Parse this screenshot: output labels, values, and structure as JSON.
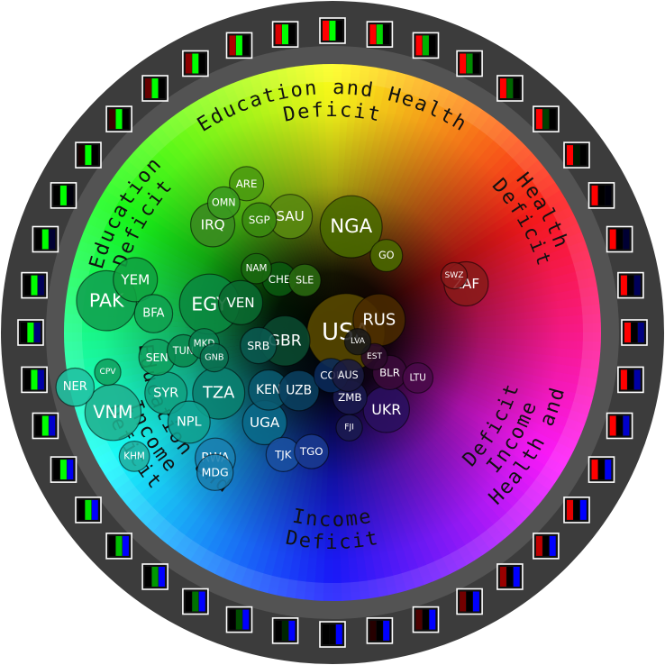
{
  "chart_data": {
    "type": "scatter",
    "projection": "radial color wheel (angle = deficit mix, radius = deficit magnitude)",
    "region_labels": [
      {
        "id": "edu-health",
        "line1": "Education and Health",
        "line2": "Deficit"
      },
      {
        "id": "health",
        "line1": "Health",
        "line2": "Deficit"
      },
      {
        "id": "health-income",
        "line1": "Health and",
        "line2": "Income",
        "line3": "Deficit"
      },
      {
        "id": "income",
        "line1": "Income",
        "line2": "Deficit"
      },
      {
        "id": "edu-income",
        "line1": "Education and",
        "line2": "Income",
        "line3": "Deficit"
      },
      {
        "id": "education",
        "line1": "Education",
        "line2": "Deficit"
      }
    ],
    "countries": [
      {
        "code": "USA",
        "ang": 90,
        "r": 0.05,
        "size": 3.2,
        "color": "#5a4a00"
      },
      {
        "code": "RUS",
        "ang": 75,
        "r": 0.18,
        "size": 1.9,
        "color": "#4a2a00"
      },
      {
        "code": "ZAF",
        "ang": 70,
        "r": 0.53,
        "size": 1.5,
        "color": "#8a1a1a"
      },
      {
        "code": "NGA",
        "ang": 10,
        "r": 0.4,
        "size": 2.4,
        "color": "#4a6a00"
      },
      {
        "code": "SAU",
        "ang": -20,
        "r": 0.46,
        "size": 1.5,
        "color": "#5a8a10"
      },
      {
        "code": "IRQ",
        "ang": -48,
        "r": 0.6,
        "size": 1.5,
        "color": "#3a8a20"
      },
      {
        "code": "ARE",
        "ang": -30,
        "r": 0.64,
        "size": 1.0,
        "color": "#4a9a10"
      },
      {
        "code": "GO",
        "ang": 35,
        "r": 0.35,
        "size": 0.9,
        "color": "#4a6a00"
      },
      {
        "code": "SWZ",
        "ang": 65,
        "r": 0.5,
        "size": 0.6,
        "color": "#8a1a1a"
      },
      {
        "code": "SGP",
        "ang": -33,
        "r": 0.5,
        "size": 1.0,
        "color": "#3a8a10"
      },
      {
        "code": "OMN",
        "ang": -40,
        "r": 0.63,
        "size": 0.9,
        "color": "#3a9a20"
      },
      {
        "code": "SLE",
        "ang": -28,
        "r": 0.22,
        "size": 0.9,
        "color": "#2a6a10"
      },
      {
        "code": "CHE",
        "ang": -45,
        "r": 0.28,
        "size": 1.0,
        "color": "#0a5a10"
      },
      {
        "code": "NAM",
        "ang": -50,
        "r": 0.37,
        "size": 0.8,
        "color": "#1a6a10"
      },
      {
        "code": "YEM",
        "ang": -75,
        "r": 0.76,
        "size": 1.5,
        "color": "#10a040"
      },
      {
        "code": "PAK",
        "ang": -82,
        "r": 0.85,
        "size": 2.3,
        "color": "#10a050"
      },
      {
        "code": "EGY",
        "ang": -77,
        "r": 0.47,
        "size": 2.3,
        "color": "#0a8a40"
      },
      {
        "code": "VEN",
        "ang": -72,
        "r": 0.36,
        "size": 1.5,
        "color": "#0a6a30"
      },
      {
        "code": "BFA",
        "ang": -84,
        "r": 0.67,
        "size": 1.2,
        "color": "#10a050"
      },
      {
        "code": "GBR",
        "ang": -100,
        "r": 0.18,
        "size": 1.8,
        "color": "#0a4a30"
      },
      {
        "code": "SEN",
        "ang": -98,
        "r": 0.66,
        "size": 1.1,
        "color": "#10a060"
      },
      {
        "code": "TUN",
        "ang": -97,
        "r": 0.56,
        "size": 0.9,
        "color": "#0a8a50"
      },
      {
        "code": "MKD",
        "ang": -95,
        "r": 0.48,
        "size": 0.8,
        "color": "#0a8050"
      },
      {
        "code": "SRB",
        "ang": -100,
        "r": 0.28,
        "size": 1.1,
        "color": "#0a5a50"
      },
      {
        "code": "GNB",
        "ang": -102,
        "r": 0.45,
        "size": 0.7,
        "color": "#0a7050"
      },
      {
        "code": "NER",
        "ang": -102,
        "r": 0.98,
        "size": 1.2,
        "color": "#20c0a0"
      },
      {
        "code": "SYR",
        "ang": -110,
        "r": 0.66,
        "size": 1.4,
        "color": "#10a080"
      },
      {
        "code": "VNM",
        "ang": -110,
        "r": 0.87,
        "size": 2.1,
        "color": "#20b090"
      },
      {
        "code": "NPL",
        "ang": -122,
        "r": 0.63,
        "size": 1.4,
        "color": "#10a090"
      },
      {
        "code": "TZA",
        "ang": -118,
        "r": 0.48,
        "size": 1.9,
        "color": "#0a8070"
      },
      {
        "code": "KEN",
        "ang": -132,
        "r": 0.32,
        "size": 1.3,
        "color": "#0a5a70"
      },
      {
        "code": "UZB",
        "ang": -150,
        "r": 0.25,
        "size": 1.3,
        "color": "#0a4060"
      },
      {
        "code": "UGA",
        "ang": -143,
        "r": 0.42,
        "size": 1.5,
        "color": "#0a6a8a"
      },
      {
        "code": "RWA",
        "ang": -137,
        "r": 0.64,
        "size": 1.3,
        "color": "#1a80b0"
      },
      {
        "code": "MDG",
        "ang": -140,
        "r": 0.68,
        "size": 1.1,
        "color": "#1a80b0"
      },
      {
        "code": "TJK",
        "ang": -158,
        "r": 0.49,
        "size": 1.0,
        "color": "#1a50a0"
      },
      {
        "code": "TGO",
        "ang": -170,
        "r": 0.45,
        "size": 1.0,
        "color": "#1a3a90"
      },
      {
        "code": "ZMB",
        "ang": 165,
        "r": 0.25,
        "size": 1.0,
        "color": "#1a1a50"
      },
      {
        "code": "AUS",
        "ang": 160,
        "r": 0.17,
        "size": 0.9,
        "color": "#1a1a40"
      },
      {
        "code": "UKR",
        "ang": 145,
        "r": 0.35,
        "size": 1.6,
        "color": "#2a1060"
      },
      {
        "code": "BLR",
        "ang": 125,
        "r": 0.26,
        "size": 1.0,
        "color": "#3a0a3a"
      },
      {
        "code": "LTU",
        "ang": 118,
        "r": 0.36,
        "size": 0.8,
        "color": "#4a0a4a"
      },
      {
        "code": "EST",
        "ang": 120,
        "r": 0.18,
        "size": 0.6,
        "color": "#2a0a2a"
      },
      {
        "code": "COL",
        "ang": -178,
        "r": 0.16,
        "size": 1.0,
        "color": "#0a2a5a"
      },
      {
        "code": "FJI",
        "ang": 170,
        "r": 0.36,
        "size": 0.6,
        "color": "#1a1a50"
      },
      {
        "code": "LVA",
        "ang": 110,
        "r": 0.1,
        "size": 0.6,
        "color": "#1a1a1a"
      },
      {
        "code": "CPV",
        "ang": -100,
        "r": 0.85,
        "size": 0.6,
        "color": "#10a060"
      },
      {
        "code": "KHM",
        "ang": -122,
        "r": 0.87,
        "size": 0.8,
        "color": "#20b0a0"
      }
    ],
    "ring_swatch_count": 40,
    "grid": false,
    "legend": "none"
  }
}
